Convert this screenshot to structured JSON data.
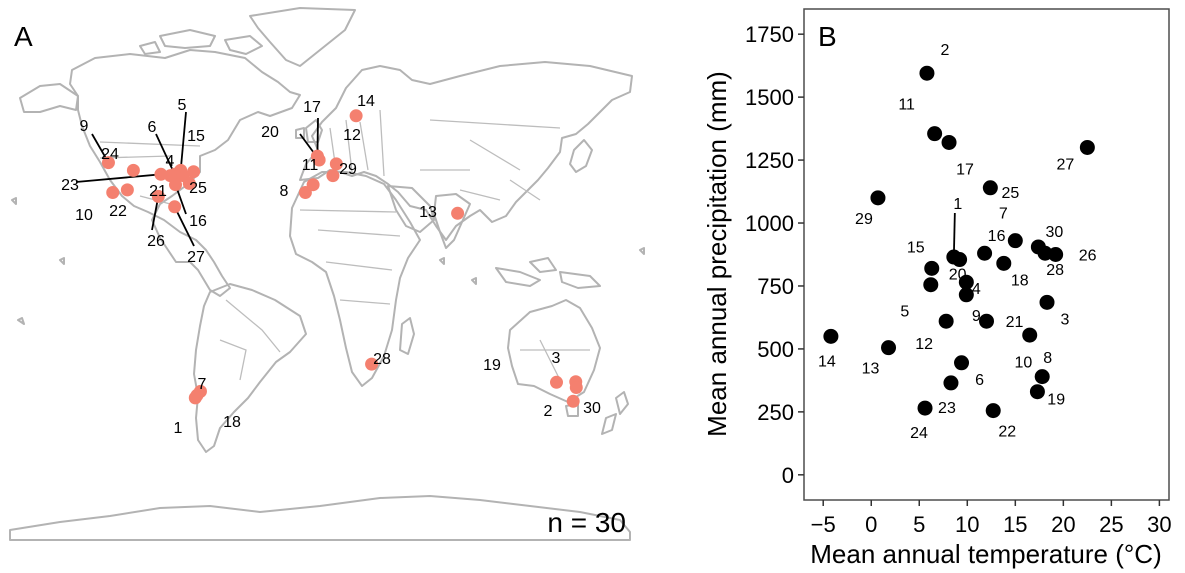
{
  "panel_a": {
    "letter": "A",
    "count_label": "n = 30",
    "marker_color": "#f4806f",
    "land_outline_color": "#b3b3b3",
    "sites": [
      {
        "id": "1",
        "lon": -72.5,
        "lat": -41.5
      },
      {
        "id": "2",
        "lon": 147.2,
        "lat": -42.8
      },
      {
        "id": "3",
        "lon": 148.7,
        "lat": -35.3
      },
      {
        "id": "4",
        "lon": -79.5,
        "lat": 44.0
      },
      {
        "id": "5",
        "lon": -81.0,
        "lat": 46.0
      },
      {
        "id": "6",
        "lon": -84.5,
        "lat": 44.5
      },
      {
        "id": "7",
        "lon": -71.5,
        "lat": -40.5
      },
      {
        "id": "8",
        "lon": -8.5,
        "lat": 37.5
      },
      {
        "id": "9",
        "lon": -123.0,
        "lat": 49.0
      },
      {
        "id": "10",
        "lon": -120.5,
        "lat": 37.5
      },
      {
        "id": "11",
        "lon": -4.0,
        "lat": 40.5
      },
      {
        "id": "12",
        "lon": 9.5,
        "lat": 48.5
      },
      {
        "id": "13",
        "lon": 80.0,
        "lat": 29.5
      },
      {
        "id": "14",
        "lon": 21.0,
        "lat": 67.0
      },
      {
        "id": "15",
        "lon": -73.5,
        "lat": 45.5
      },
      {
        "id": "16",
        "lon": -84.0,
        "lat": 40.5
      },
      {
        "id": "17",
        "lon": -1.5,
        "lat": 51.5
      },
      {
        "id": "18",
        "lon": -69.5,
        "lat": -39.0
      },
      {
        "id": "19",
        "lon": 137.5,
        "lat": -35.5
      },
      {
        "id": "20",
        "lon": -0.5,
        "lat": 50.0
      },
      {
        "id": "21",
        "lon": -87.0,
        "lat": 44.0
      },
      {
        "id": "22",
        "lon": -112.0,
        "lat": 38.5
      },
      {
        "id": "23",
        "lon": -92.5,
        "lat": 44.5
      },
      {
        "id": "24",
        "lon": -108.5,
        "lat": 46.0
      },
      {
        "id": "25",
        "lon": -76.0,
        "lat": 41.0
      },
      {
        "id": "26",
        "lon": -94.0,
        "lat": 36.0
      },
      {
        "id": "27",
        "lon": -84.5,
        "lat": 32.0
      },
      {
        "id": "28",
        "lon": 30.0,
        "lat": -28.5
      },
      {
        "id": "29",
        "lon": 7.5,
        "lat": 44.0
      },
      {
        "id": "30",
        "lon": 149.0,
        "lat": -37.5
      }
    ]
  },
  "panel_b": {
    "letter": "B"
  },
  "chart_data": {
    "type": "scatter",
    "xlabel": "Mean annual temperature (°C)",
    "ylabel": "Mean annual precipitation (mm)",
    "xlim": [
      -7,
      31
    ],
    "ylim": [
      -100,
      1850
    ],
    "xticks": [
      -5,
      0,
      5,
      10,
      15,
      20,
      25,
      30
    ],
    "yticks": [
      0,
      250,
      500,
      750,
      1000,
      1250,
      1500,
      1750
    ],
    "grid": false,
    "marker_color": "#000000",
    "points": [
      {
        "id": "1",
        "x": 8.6,
        "y": 865
      },
      {
        "id": "2",
        "x": 5.8,
        "y": 1595
      },
      {
        "id": "3",
        "x": 18.3,
        "y": 685
      },
      {
        "id": "4",
        "x": 9.9,
        "y": 765
      },
      {
        "id": "5",
        "x": 6.2,
        "y": 755
      },
      {
        "id": "6",
        "x": 9.4,
        "y": 445
      },
      {
        "id": "7",
        "x": 15.0,
        "y": 930
      },
      {
        "id": "8",
        "x": 16.5,
        "y": 555
      },
      {
        "id": "9",
        "x": 9.9,
        "y": 715
      },
      {
        "id": "10",
        "x": 17.3,
        "y": 330
      },
      {
        "id": "11",
        "x": 6.6,
        "y": 1355
      },
      {
        "id": "12",
        "x": 7.8,
        "y": 610
      },
      {
        "id": "13",
        "x": 1.8,
        "y": 505
      },
      {
        "id": "14",
        "x": -4.2,
        "y": 550
      },
      {
        "id": "15",
        "x": 6.3,
        "y": 820
      },
      {
        "id": "16",
        "x": 11.8,
        "y": 880
      },
      {
        "id": "17",
        "x": 8.1,
        "y": 1320
      },
      {
        "id": "18",
        "x": 13.8,
        "y": 840
      },
      {
        "id": "19",
        "x": 17.8,
        "y": 390
      },
      {
        "id": "20",
        "x": 9.2,
        "y": 855
      },
      {
        "id": "21",
        "x": 12.0,
        "y": 610
      },
      {
        "id": "22",
        "x": 12.7,
        "y": 255
      },
      {
        "id": "23",
        "x": 8.3,
        "y": 365
      },
      {
        "id": "24",
        "x": 5.6,
        "y": 265
      },
      {
        "id": "25",
        "x": 12.4,
        "y": 1140
      },
      {
        "id": "26",
        "x": 19.2,
        "y": 875
      },
      {
        "id": "27",
        "x": 22.5,
        "y": 1300
      },
      {
        "id": "28",
        "x": 18.1,
        "y": 880
      },
      {
        "id": "29",
        "x": 0.7,
        "y": 1100
      },
      {
        "id": "30",
        "x": 17.4,
        "y": 905
      }
    ]
  }
}
